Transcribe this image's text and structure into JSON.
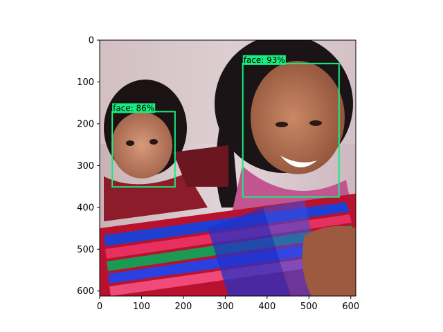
{
  "image_extent": {
    "width": 612,
    "height": 612
  },
  "axes": {
    "xticks": [
      0,
      100,
      200,
      300,
      400,
      500,
      600
    ],
    "yticks": [
      0,
      100,
      200,
      300,
      400,
      500,
      600
    ],
    "xlim": [
      0,
      612
    ],
    "ylim_inverted": [
      612,
      0
    ]
  },
  "photo": {
    "description_icon": "photo-icon",
    "subjects": [
      "woman",
      "child"
    ]
  },
  "detections": [
    {
      "label": "face: 93%",
      "x0": 342,
      "y0": 56,
      "x1": 572,
      "y1": 375,
      "color": "#19ec7f"
    },
    {
      "label": "face: 86%",
      "x0": 30,
      "y0": 171,
      "x1": 180,
      "y1": 351,
      "color": "#19ec7f"
    }
  ],
  "colors": {
    "box": "#19ec7f",
    "spine": "#000000"
  }
}
